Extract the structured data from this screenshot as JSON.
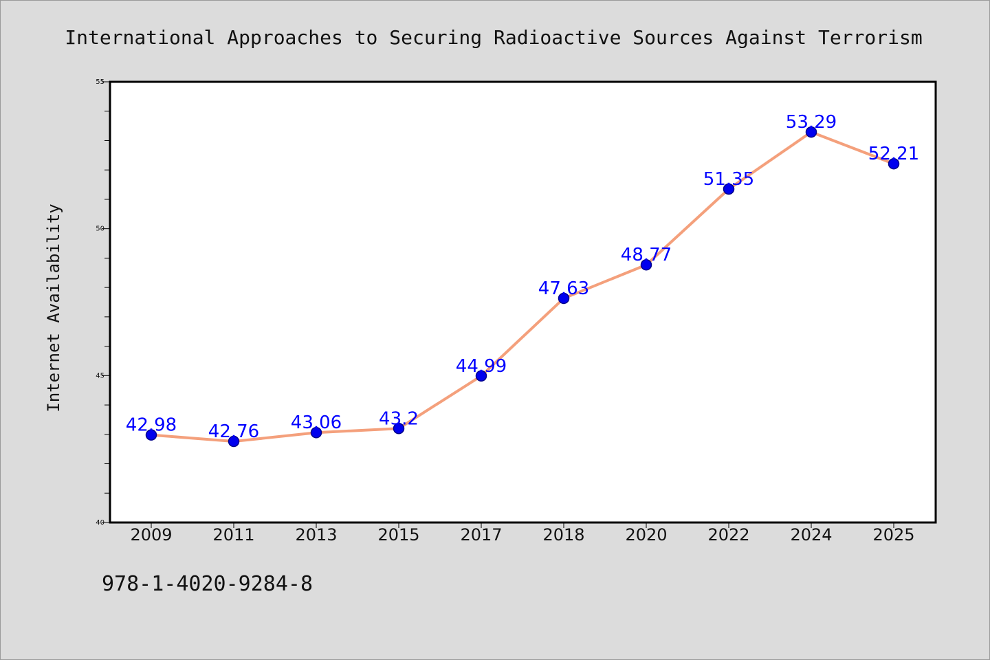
{
  "chart_data": {
    "type": "line",
    "title": "International Approaches to Securing Radioactive Sources Against Terrorism",
    "xlabel": "",
    "ylabel": "Internet Availability",
    "categories": [
      "2009",
      "2011",
      "2013",
      "2015",
      "2017",
      "2018",
      "2020",
      "2022",
      "2024",
      "2025"
    ],
    "series": [
      {
        "values": [
          42.98,
          42.76,
          43.06,
          43.2,
          44.99,
          47.63,
          48.77,
          51.35,
          53.29,
          52.21
        ],
        "data_labels": [
          "42.98",
          "42.76",
          "43.06",
          "43.2",
          "44.99",
          "47.63",
          "48.77",
          "51.35",
          "53.29",
          "52.21"
        ]
      }
    ],
    "ylim": [
      40,
      55
    ],
    "yticks": [
      "40",
      "45",
      "50",
      "55"
    ],
    "grid": false,
    "legend": "none",
    "colors": {
      "line": "#f4a07c",
      "marker": "#0000ee",
      "marker_edge": "#00008a",
      "label": "#0000ff",
      "background": "#dcdcdc",
      "plot_background": "#ffffff"
    }
  },
  "footer": {
    "isbn": "978-1-4020-9284-8"
  }
}
